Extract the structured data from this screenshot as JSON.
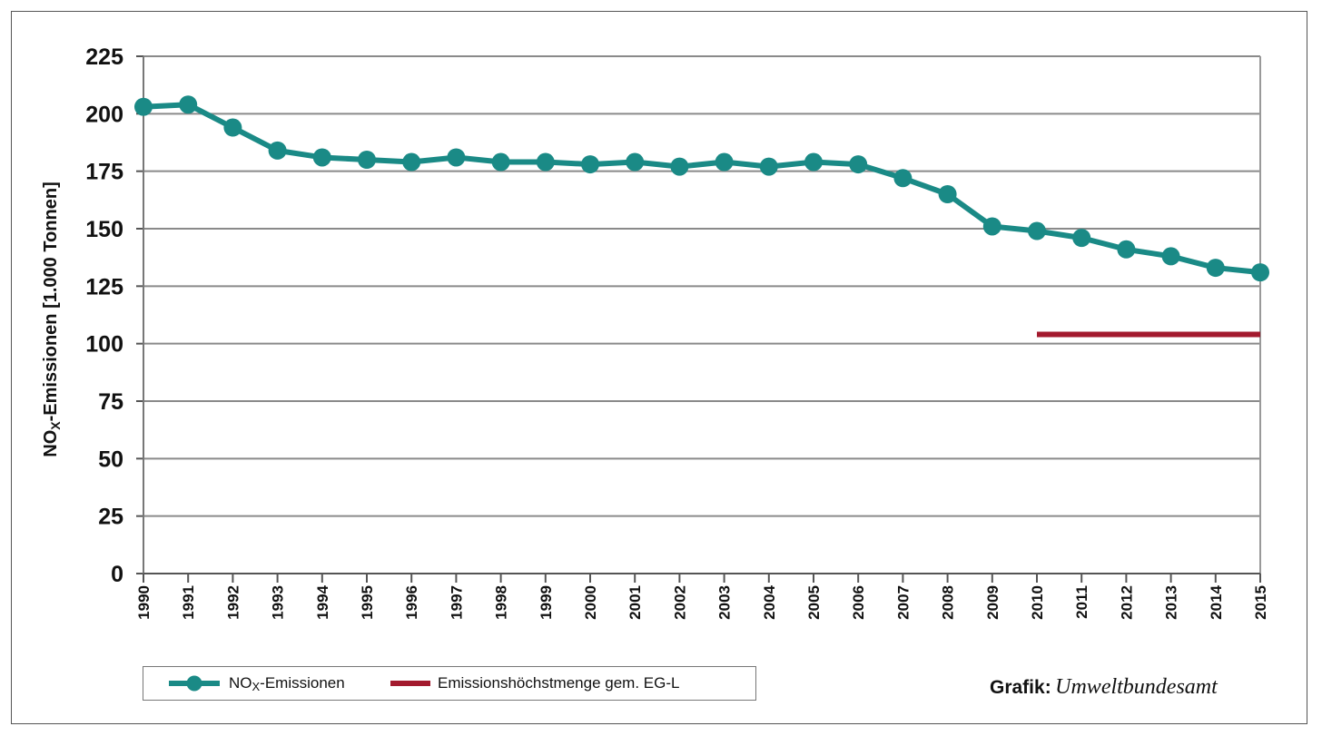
{
  "chart_data": {
    "type": "line",
    "ylabel": "NOx-Emissionen [1.000 Tonnen]",
    "ylabel_parts": {
      "pre": "NO",
      "sub": "X",
      "post": "-Emissionen [1.000 Tonnen]"
    },
    "ylim": [
      0,
      225
    ],
    "yticks": [
      0,
      25,
      50,
      75,
      100,
      125,
      150,
      175,
      200,
      225
    ],
    "x": [
      1990,
      1991,
      1992,
      1993,
      1994,
      1995,
      1996,
      1997,
      1998,
      1999,
      2000,
      2001,
      2002,
      2003,
      2004,
      2005,
      2006,
      2007,
      2008,
      2009,
      2010,
      2011,
      2012,
      2013,
      2014,
      2015
    ],
    "series": [
      {
        "name": "NOx-Emissionen",
        "color": "#1a8a86",
        "values": [
          203,
          204,
          194,
          184,
          181,
          180,
          179,
          181,
          179,
          179,
          178,
          179,
          177,
          179,
          177,
          179,
          178,
          172,
          165,
          151,
          149,
          146,
          141,
          138,
          133,
          131
        ]
      },
      {
        "name": "Emissionshöchstmenge gem. EG-L",
        "color": "#a31a2e",
        "x": [
          2010,
          2015
        ],
        "values": [
          104,
          104
        ]
      }
    ],
    "legend_position": "bottom-left",
    "grid": true
  },
  "legend": {
    "nox": {
      "pre": "NO",
      "sub": "X",
      "post": "-Emissionen"
    },
    "limit": "Emissionshöchstmenge gem. EG-L"
  },
  "credit": {
    "bold": "Grafik:",
    "italic": "Umweltbundesamt"
  }
}
